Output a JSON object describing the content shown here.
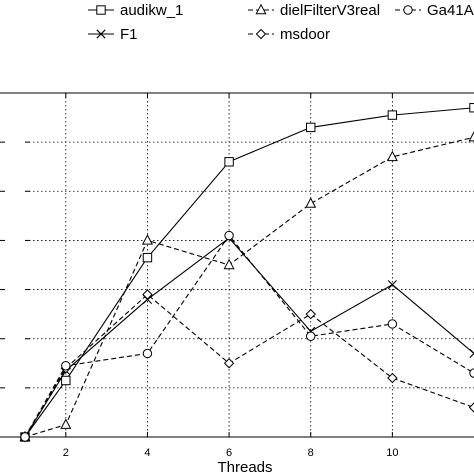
{
  "chart_data": {
    "type": "line",
    "xlabel": "Threads",
    "ylabel": "",
    "title": "",
    "xlim": [
      1,
      12
    ],
    "ylim": [
      0,
      7
    ],
    "x_ticks": [
      2,
      4,
      6,
      8,
      10
    ],
    "grid": true,
    "legend_position": "top",
    "series": [
      {
        "name": "audikw_1",
        "marker": "square",
        "dash": "solid",
        "x": [
          1,
          2,
          4,
          6,
          8,
          10,
          12
        ],
        "y": [
          0,
          1.15,
          3.65,
          5.6,
          6.3,
          6.55,
          6.7
        ]
      },
      {
        "name": "F1",
        "marker": "x",
        "dash": "solid",
        "x": [
          1,
          2,
          4,
          6,
          8,
          10,
          12
        ],
        "y": [
          0,
          1.35,
          2.8,
          4.05,
          2.15,
          3.1,
          1.7
        ]
      },
      {
        "name": "dielFilterV3real",
        "marker": "triangle",
        "dash": "dashed",
        "x": [
          1,
          2,
          4,
          6,
          8,
          10,
          12
        ],
        "y": [
          0,
          0.25,
          4.0,
          3.5,
          4.75,
          5.7,
          6.1
        ]
      },
      {
        "name": "msdoor",
        "marker": "diamond",
        "dash": "dashed",
        "x": [
          1,
          2,
          4,
          6,
          8,
          10,
          12
        ],
        "y": [
          0,
          1.4,
          2.9,
          1.5,
          2.5,
          1.2,
          0.6
        ]
      },
      {
        "name": "Ga41A",
        "marker": "circle",
        "dash": "dashed",
        "x": [
          1,
          2,
          4,
          6,
          8,
          10,
          12
        ],
        "y": [
          0,
          1.45,
          1.7,
          4.1,
          2.05,
          2.3,
          1.3
        ]
      }
    ]
  }
}
